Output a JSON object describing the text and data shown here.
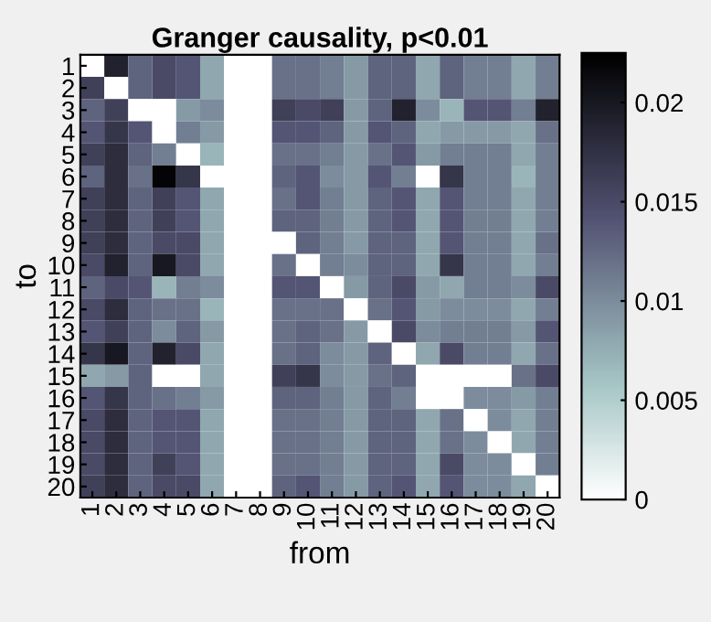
{
  "chart_data": {
    "type": "heatmap",
    "title": "Granger causality, p<0.01",
    "xlabel": "from",
    "ylabel": "to",
    "categories": [
      "1",
      "2",
      "3",
      "4",
      "5",
      "6",
      "7",
      "8",
      "9",
      "10",
      "11",
      "12",
      "13",
      "14",
      "15",
      "16",
      "17",
      "18",
      "19",
      "20"
    ],
    "y_categories": [
      "1",
      "2",
      "3",
      "4",
      "5",
      "6",
      "7",
      "8",
      "9",
      "10",
      "11",
      "12",
      "13",
      "14",
      "15",
      "16",
      "17",
      "18",
      "19",
      "20"
    ],
    "clim": [
      0,
      0.0225
    ],
    "cticks": [
      0,
      0.005,
      0.01,
      0.015,
      0.02
    ],
    "cells": [
      [
        0,
        0.019,
        0.013,
        0.015,
        0.014,
        0.008,
        0,
        0,
        0.012,
        0.012,
        0.011,
        0.009,
        0.013,
        0.013,
        0.008,
        0.013,
        0.011,
        0.011,
        0.008,
        0.011
      ],
      [
        0.016,
        0,
        0.013,
        0.015,
        0.014,
        0.008,
        0,
        0,
        0.012,
        0.012,
        0.011,
        0.009,
        0.013,
        0.013,
        0.008,
        0.013,
        0.011,
        0.011,
        0.008,
        0.011
      ],
      [
        0.013,
        0.016,
        0,
        0,
        0.009,
        0.01,
        0,
        0,
        0.016,
        0.015,
        0.016,
        0.009,
        0.013,
        0.019,
        0.01,
        0.007,
        0.014,
        0.014,
        0.011,
        0.019
      ],
      [
        0.014,
        0.017,
        0.014,
        0,
        0.011,
        0.009,
        0,
        0,
        0.014,
        0.014,
        0.013,
        0.009,
        0.014,
        0.013,
        0.008,
        0.009,
        0.009,
        0.009,
        0.008,
        0.012
      ],
      [
        0.016,
        0.018,
        0.013,
        0.011,
        0,
        0.007,
        0,
        0,
        0.012,
        0.012,
        0.011,
        0.009,
        0.012,
        0.014,
        0.009,
        0.011,
        0.011,
        0.011,
        0.008,
        0.011
      ],
      [
        0.013,
        0.018,
        0.012,
        0.022,
        0.017,
        0,
        0,
        0,
        0.013,
        0.014,
        0.01,
        0.009,
        0.014,
        0.011,
        0,
        0.017,
        0.011,
        0.011,
        0.007,
        0.011
      ],
      [
        0.016,
        0.018,
        0.013,
        0.016,
        0.014,
        0.008,
        0,
        0,
        0.012,
        0.014,
        0.011,
        0.009,
        0.013,
        0.014,
        0.008,
        0.014,
        0.011,
        0.011,
        0.008,
        0.011
      ],
      [
        0.016,
        0.018,
        0.013,
        0.016,
        0.014,
        0.008,
        0,
        0,
        0.013,
        0.013,
        0.011,
        0.009,
        0.013,
        0.014,
        0.008,
        0.014,
        0.011,
        0.011,
        0.008,
        0.011
      ],
      [
        0.016,
        0.018,
        0.013,
        0.015,
        0.015,
        0.008,
        0,
        0,
        0,
        0.013,
        0.011,
        0.009,
        0.013,
        0.013,
        0.008,
        0.014,
        0.011,
        0.011,
        0.008,
        0.012
      ],
      [
        0.015,
        0.019,
        0.013,
        0.02,
        0.015,
        0.008,
        0,
        0,
        0.012,
        0,
        0.011,
        0.01,
        0.013,
        0.013,
        0.008,
        0.017,
        0.011,
        0.011,
        0.008,
        0.011
      ],
      [
        0.013,
        0.015,
        0.014,
        0.007,
        0.011,
        0.01,
        0,
        0,
        0.014,
        0.014,
        0,
        0.009,
        0.013,
        0.015,
        0.009,
        0.008,
        0.011,
        0.011,
        0.01,
        0.015
      ],
      [
        0.015,
        0.018,
        0.013,
        0.012,
        0.012,
        0.007,
        0,
        0,
        0.012,
        0.012,
        0.012,
        0,
        0.012,
        0.014,
        0.009,
        0.01,
        0.01,
        0.01,
        0.008,
        0.011
      ],
      [
        0.014,
        0.016,
        0.013,
        0.01,
        0.013,
        0.009,
        0,
        0,
        0.012,
        0.013,
        0.012,
        0.009,
        0,
        0.015,
        0.01,
        0.011,
        0.011,
        0.011,
        0.009,
        0.014
      ],
      [
        0.017,
        0.02,
        0.013,
        0.019,
        0.015,
        0.008,
        0,
        0,
        0.012,
        0.013,
        0.01,
        0.009,
        0.013,
        0,
        0.008,
        0.015,
        0.011,
        0.011,
        0.008,
        0.012
      ],
      [
        0.008,
        0.009,
        0.013,
        0,
        0,
        0.008,
        0,
        0,
        0.016,
        0.017,
        0.01,
        0.009,
        0.012,
        0.013,
        0,
        0,
        0,
        0,
        0.012,
        0.015
      ],
      [
        0.014,
        0.017,
        0.013,
        0.012,
        0.011,
        0.009,
        0,
        0,
        0.013,
        0.013,
        0.011,
        0.009,
        0.013,
        0.011,
        0,
        0,
        0.01,
        0.01,
        0.009,
        0.011
      ],
      [
        0.015,
        0.018,
        0.013,
        0.014,
        0.014,
        0.008,
        0,
        0,
        0.012,
        0.012,
        0.011,
        0.009,
        0.013,
        0.013,
        0.008,
        0.012,
        0,
        0.01,
        0.008,
        0.011
      ],
      [
        0.015,
        0.018,
        0.013,
        0.014,
        0.014,
        0.008,
        0,
        0,
        0.012,
        0.012,
        0.011,
        0.009,
        0.013,
        0.013,
        0.008,
        0.012,
        0.01,
        0,
        0.008,
        0.011
      ],
      [
        0.015,
        0.018,
        0.013,
        0.016,
        0.014,
        0.008,
        0,
        0,
        0.012,
        0.012,
        0.011,
        0.009,
        0.013,
        0.013,
        0.008,
        0.015,
        0.01,
        0.01,
        0,
        0.011
      ],
      [
        0.016,
        0.018,
        0.013,
        0.015,
        0.015,
        0.008,
        0,
        0,
        0.013,
        0.014,
        0.011,
        0.009,
        0.013,
        0.014,
        0.008,
        0.014,
        0.01,
        0.01,
        0.008,
        0
      ]
    ]
  }
}
